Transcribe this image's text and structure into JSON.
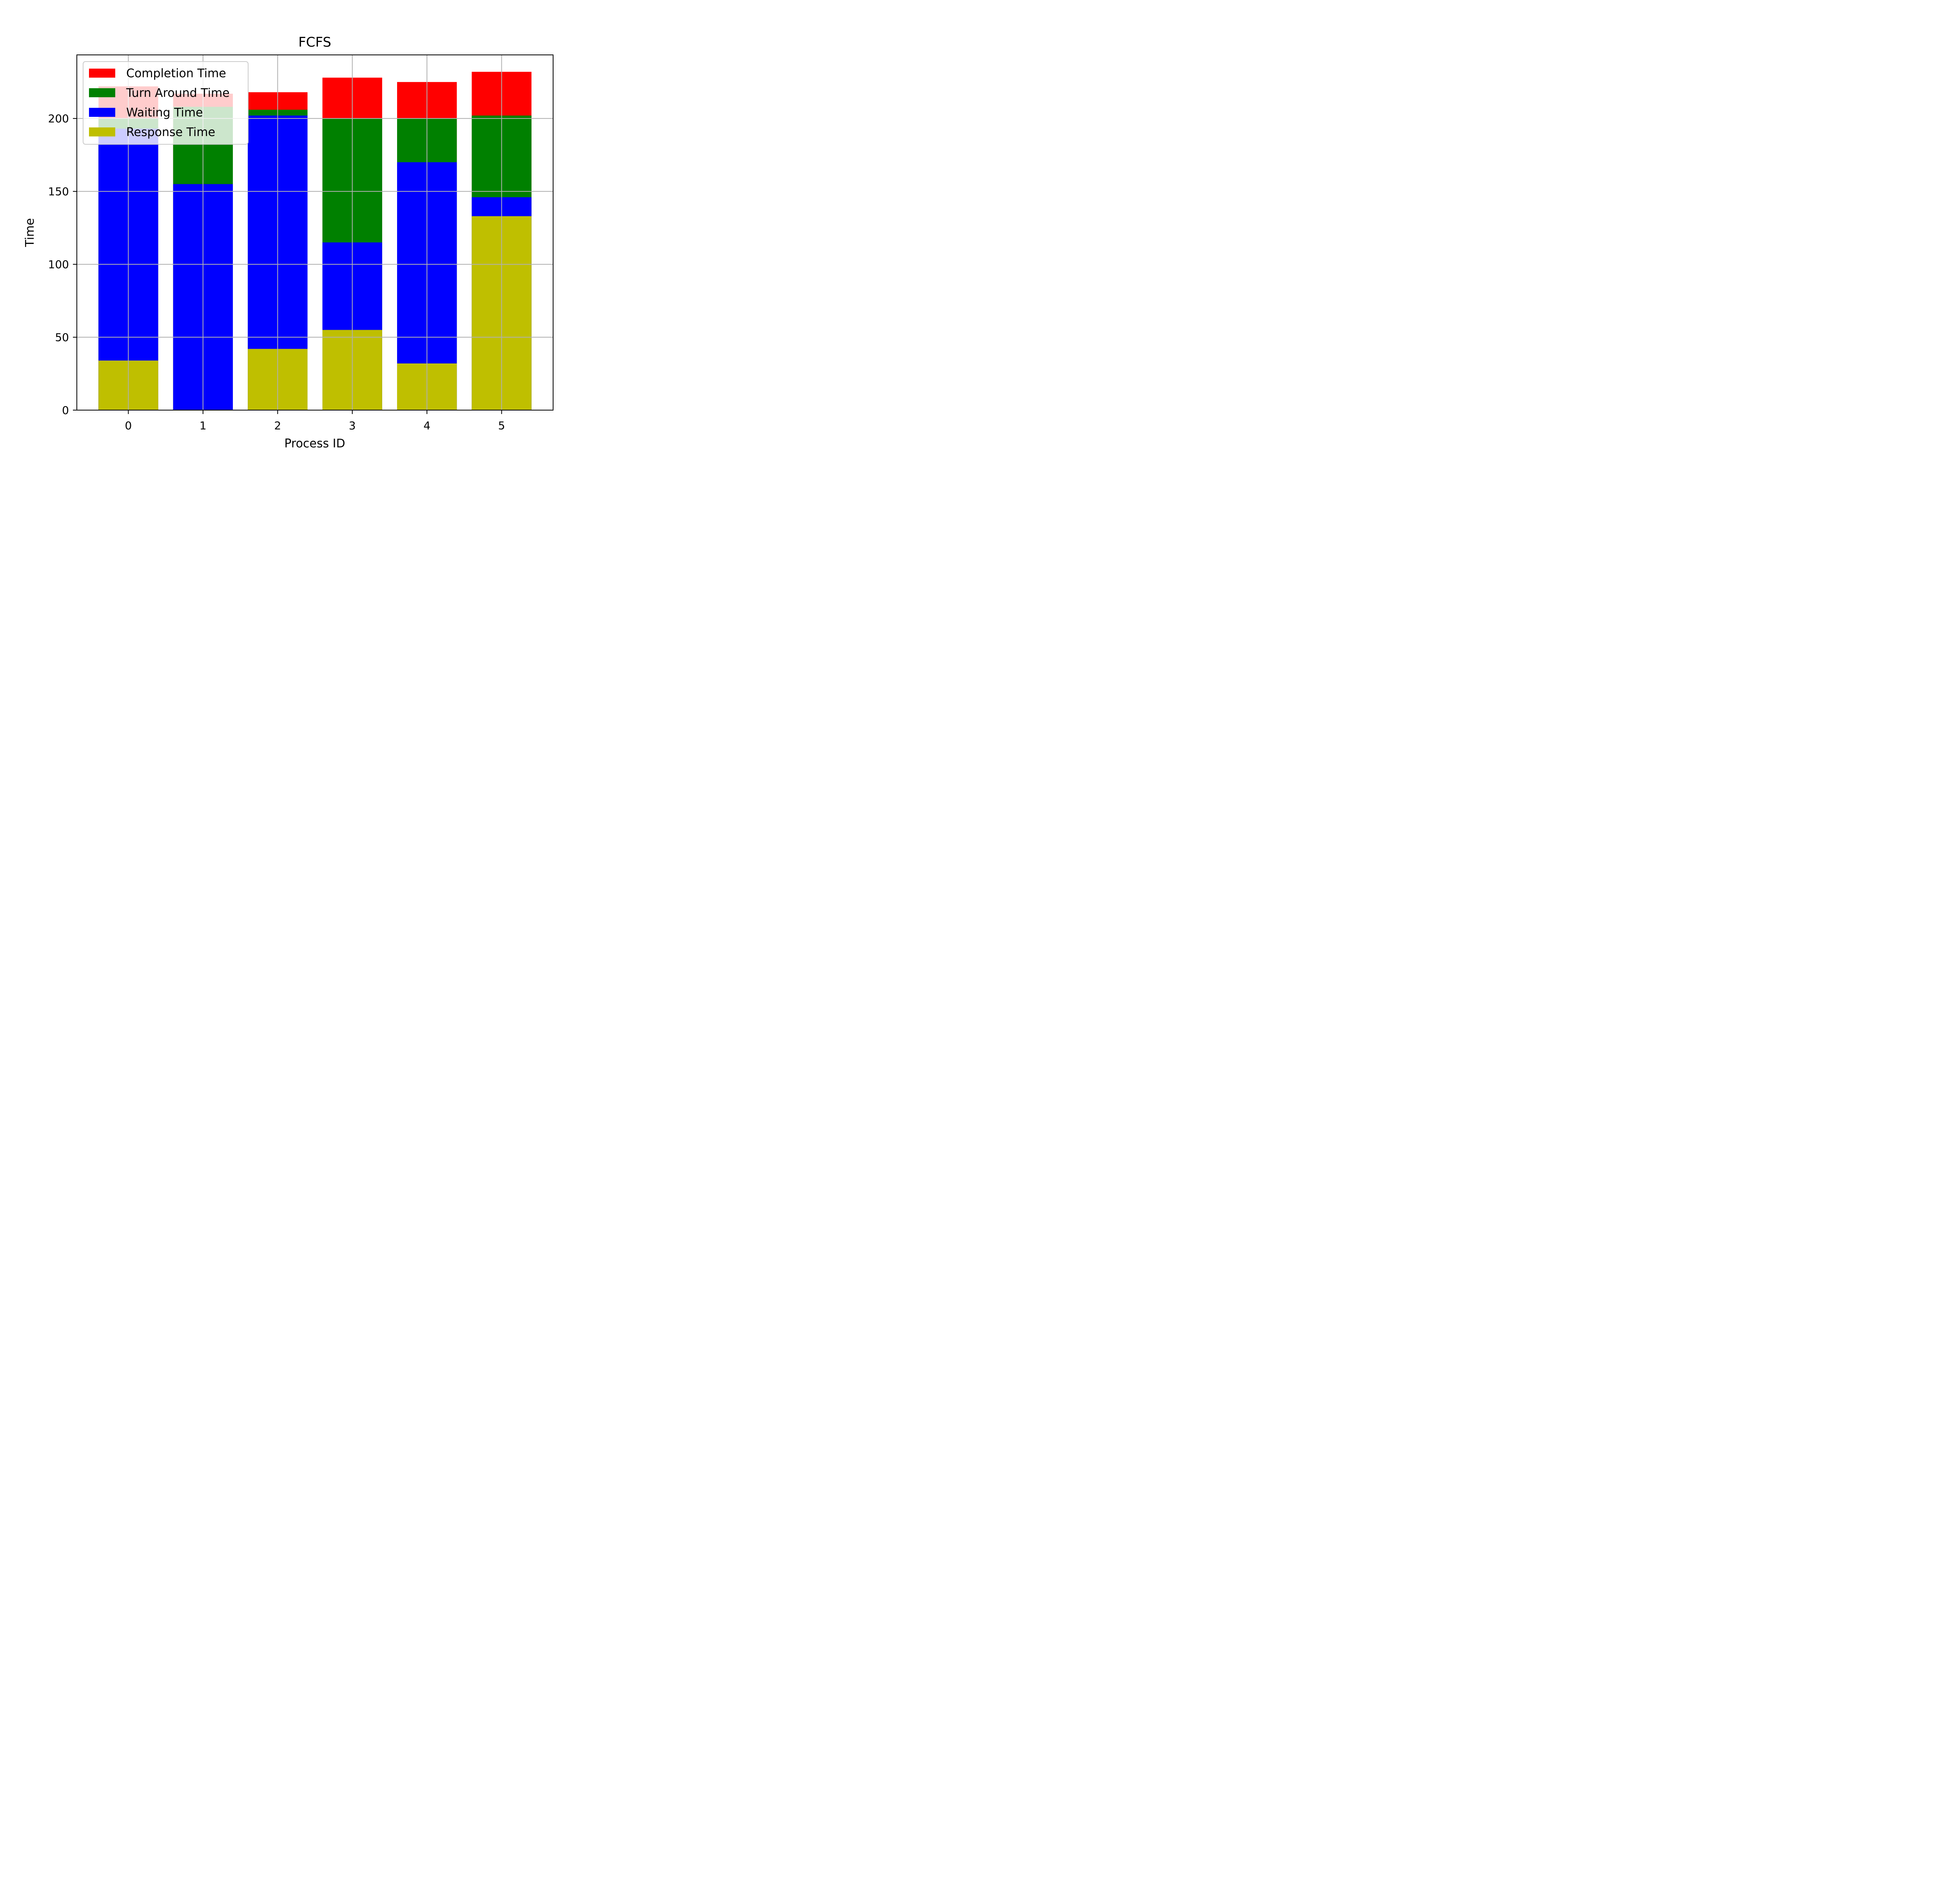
{
  "chart_data": {
    "type": "bar",
    "stacked_overlay": true,
    "title": "FCFS",
    "xlabel": "Process ID",
    "ylabel": "Time",
    "categories": [
      "0",
      "1",
      "2",
      "3",
      "4",
      "5"
    ],
    "ylim": [
      0,
      243.6
    ],
    "yticks": [
      0,
      50,
      100,
      150,
      200
    ],
    "grid": true,
    "legend_position": "top-left",
    "series": [
      {
        "name": "Completion Time",
        "color": "#ff0000",
        "values": [
          222,
          217,
          218,
          228,
          225,
          232
        ]
      },
      {
        "name": "Turn Around Time",
        "color": "#008000",
        "values": [
          200,
          208,
          206,
          200,
          200,
          202
        ]
      },
      {
        "name": "Waiting Time",
        "color": "#0000ff",
        "values": [
          193,
          155,
          202,
          115,
          170,
          146
        ]
      },
      {
        "name": "Response Time",
        "color": "#bfbf00",
        "values": [
          34,
          0,
          42,
          55,
          32,
          133
        ]
      }
    ]
  }
}
